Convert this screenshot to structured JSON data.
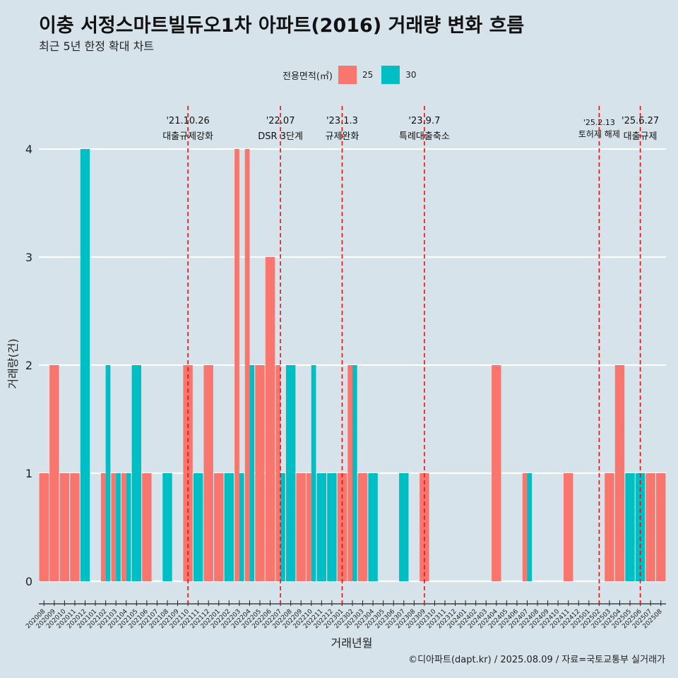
{
  "title": "이충 서정스마트빌듀오1차 아파트(2016) 거래량 변화 흐름",
  "subtitle": "최근 5년 한정 확대 차트",
  "caption": "©디아파트(dapt.kr) / 2025.08.09 / 자료=국토교통부 실거래가",
  "legend": {
    "title": "전용면적(㎡)",
    "items": [
      {
        "label": "25",
        "color": "#F8766D"
      },
      {
        "label": "30",
        "color": "#00BFC4"
      }
    ]
  },
  "chart_data": {
    "type": "bar",
    "title": "이충 서정스마트빌듀오1차 아파트(2016) 거래량 변화 흐름",
    "subtitle": "최근 5년 한정 확대 차트",
    "xlabel": "거래년월",
    "ylabel": "거래량(건)",
    "ylim": [
      0,
      4
    ],
    "yticks": [
      0,
      1,
      2,
      3,
      4
    ],
    "grid": true,
    "legend_position": "top",
    "categories": [
      "202008",
      "202009",
      "202010",
      "202011",
      "202012",
      "202101",
      "202102",
      "202103",
      "202104",
      "202105",
      "202106",
      "202107",
      "202108",
      "202109",
      "202110",
      "202111",
      "202112",
      "202201",
      "202202",
      "202203",
      "202204",
      "202205",
      "202206",
      "202207",
      "202208",
      "202209",
      "202210",
      "202211",
      "202212",
      "202301",
      "202302",
      "202303",
      "202304",
      "202305",
      "202306",
      "202307",
      "202308",
      "202309",
      "202310",
      "202311",
      "202312",
      "202401",
      "202402",
      "202403",
      "202404",
      "202405",
      "202406",
      "202407",
      "202408",
      "202409",
      "202410",
      "202411",
      "202412",
      "202501",
      "202502",
      "202503",
      "202504",
      "202505",
      "202506",
      "202507",
      "202508"
    ],
    "series": [
      {
        "name": "25",
        "color": "#F8766D",
        "values": [
          1,
          2,
          1,
          1,
          0,
          0,
          1,
          1,
          1,
          0,
          1,
          0,
          0,
          0,
          2,
          0,
          2,
          1,
          0,
          4,
          4,
          2,
          3,
          2,
          0,
          1,
          1,
          0,
          0,
          1,
          2,
          1,
          0,
          0,
          0,
          0,
          0,
          1,
          0,
          0,
          0,
          0,
          0,
          0,
          2,
          0,
          0,
          1,
          0,
          0,
          0,
          1,
          0,
          0,
          0,
          1,
          2,
          0,
          0,
          1,
          1
        ]
      },
      {
        "name": "30",
        "color": "#00BFC4",
        "values": [
          0,
          0,
          0,
          0,
          4,
          0,
          2,
          1,
          1,
          2,
          0,
          0,
          1,
          0,
          0,
          1,
          0,
          0,
          1,
          1,
          2,
          0,
          0,
          1,
          2,
          0,
          2,
          1,
          1,
          0,
          2,
          0,
          1,
          0,
          0,
          1,
          0,
          0,
          0,
          0,
          0,
          0,
          0,
          0,
          0,
          0,
          0,
          1,
          0,
          0,
          0,
          0,
          0,
          0,
          0,
          0,
          0,
          1,
          1,
          0,
          0
        ]
      }
    ],
    "annotations": [
      {
        "date": "'21.10.26",
        "label": "대출규제강화",
        "x": "202110"
      },
      {
        "date": "'22.07",
        "label": "DSR 3단계",
        "x": "202207"
      },
      {
        "date": "'23.1.3",
        "label": "규제완화",
        "x": "202301"
      },
      {
        "date": "'23.9.7",
        "label": "특례대출축소",
        "x": "202309"
      },
      {
        "date": "'25.2.13",
        "label": "토허제 해제",
        "x": "202502"
      },
      {
        "date": "'25.6.27",
        "label": "대출규제",
        "x": "202506"
      }
    ]
  }
}
